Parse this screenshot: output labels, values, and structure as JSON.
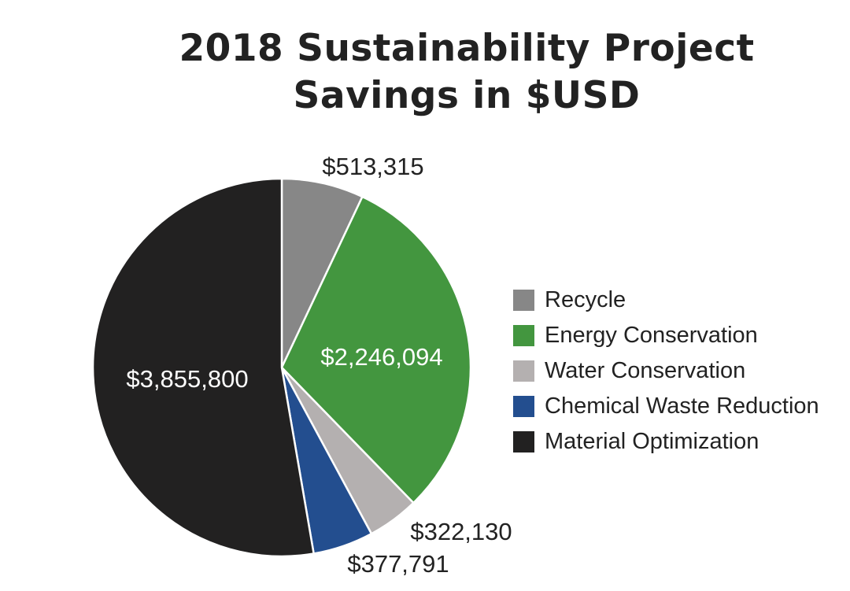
{
  "title_lines": [
    "2018 Sustainability Project",
    "Savings in $USD"
  ],
  "chart_data": {
    "type": "pie",
    "title": "2018 Sustainability Project Savings in $USD",
    "legend_position": "right",
    "start_angle_deg": 0,
    "direction": "clockwise",
    "slices": [
      {
        "name": "Recycle",
        "value": 513315,
        "label": "$513,315",
        "color": "#878787",
        "label_color": "#222222",
        "label_placement": "outside"
      },
      {
        "name": "Energy Conservation",
        "value": 2246094,
        "label": "$2,246,094",
        "color": "#43963f",
        "label_color": "#ffffff",
        "label_placement": "inside"
      },
      {
        "name": "Water Conservation",
        "value": 322130,
        "label": "$322,130",
        "color": "#b4b0b0",
        "label_color": "#222222",
        "label_placement": "outside"
      },
      {
        "name": "Chemical Waste Reduction",
        "value": 377791,
        "label": "$377,791",
        "color": "#234e8f",
        "label_color": "#222222",
        "label_placement": "outside"
      },
      {
        "name": "Material Optimization",
        "value": 3855800,
        "label": "$3,855,800",
        "color": "#222121",
        "label_color": "#ffffff",
        "label_placement": "inside"
      }
    ]
  },
  "legend": {
    "items": [
      {
        "label": "Recycle",
        "color": "#878787"
      },
      {
        "label": "Energy Conservation",
        "color": "#43963f"
      },
      {
        "label": "Water Conservation",
        "color": "#b4b0b0"
      },
      {
        "label": "Chemical Waste Reduction",
        "color": "#234e8f"
      },
      {
        "label": "Material Optimization",
        "color": "#222121"
      }
    ]
  }
}
